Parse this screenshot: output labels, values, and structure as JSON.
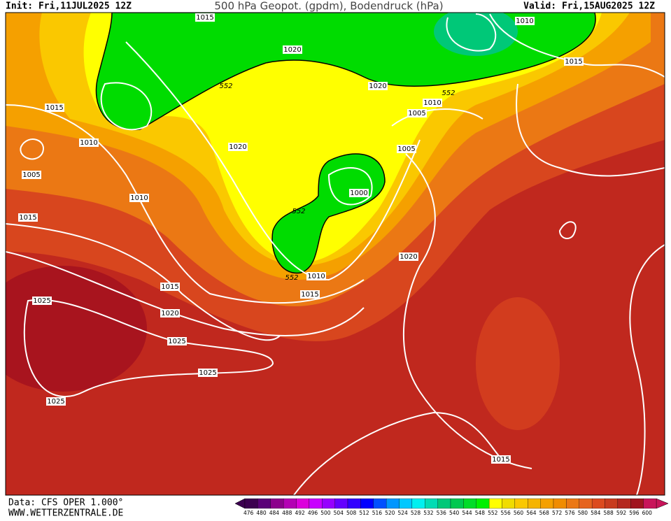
{
  "header": {
    "init": "Init: Fri,11JUL2025 12Z",
    "title": "500 hPa Geopot. (gpdm), Bodendruck (hPa)",
    "valid": "Valid: Fri,15AUG2025 12Z"
  },
  "isobar_labels": [
    "1015",
    "1010",
    "1020",
    "1015",
    "1020",
    "552",
    "552",
    "1010",
    "1005",
    "1015",
    "1010",
    "1020",
    "1005",
    "1005",
    "1000",
    "1010",
    "1015",
    "552",
    "1020",
    "552",
    "1010",
    "1015",
    "1015",
    "1025",
    "1020",
    "1025",
    "1025",
    "1025",
    "1015"
  ],
  "legend": {
    "values": [
      476,
      480,
      484,
      488,
      492,
      496,
      500,
      504,
      508,
      512,
      516,
      520,
      524,
      528,
      532,
      536,
      540,
      544,
      548,
      552,
      556,
      560,
      564,
      568,
      572,
      576,
      580,
      584,
      588,
      592,
      596,
      600
    ],
    "colors": [
      "#3c0050",
      "#5a0078",
      "#8c008c",
      "#b400b4",
      "#dc00dc",
      "#c800ff",
      "#9600ff",
      "#6400ff",
      "#3200ff",
      "#0000ff",
      "#0050ff",
      "#0096ff",
      "#00c8ff",
      "#00f0f0",
      "#00dcb4",
      "#00c878",
      "#00c850",
      "#00dc28",
      "#00f000",
      "#ffff00",
      "#f0dc00",
      "#fac800",
      "#f5b400",
      "#f5a000",
      "#f08c00",
      "#eb7814",
      "#e6641e",
      "#dc4b1e",
      "#c83c1e",
      "#b4281e",
      "#a0141e",
      "#c8145a"
    ]
  },
  "footer": {
    "source": "Data: CFS OPER 1.000°",
    "site": "WWW.WETTERZENTRALE.DE"
  }
}
